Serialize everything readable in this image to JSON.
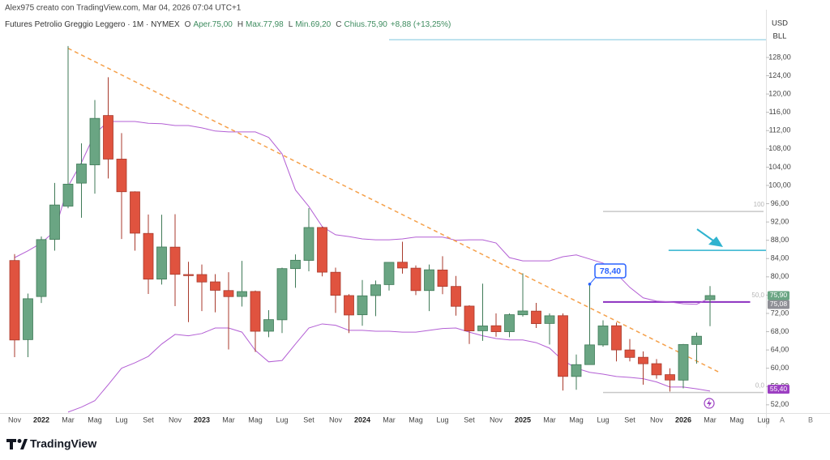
{
  "chart_data": {
    "type": "candlestick",
    "byline": "Alex975 creato con TradingView.com, Mar 04, 2026 07:04 UTC+1",
    "symbol": "Futures Petrolio Greggio Leggero · 1M · NYMEX",
    "ohlc_header": [
      {
        "key": "O",
        "text": "Aper.75,00"
      },
      {
        "key": "H",
        "text": "Max.77,98"
      },
      {
        "key": "L",
        "text": "Min.69,20"
      },
      {
        "key": "C",
        "text": "Chius.75,90"
      }
    ],
    "change": "+8,88 (+13,25%)",
    "currency": "USD",
    "unit": "BLL",
    "categories": [
      "Nov",
      null,
      "2022",
      null,
      "Mar",
      null,
      "Mag",
      null,
      "Lug",
      null,
      "Set",
      null,
      "Nov",
      null,
      "2023",
      null,
      "Mar",
      null,
      "Mag",
      null,
      "Lug",
      null,
      "Set",
      null,
      "Nov",
      null,
      "2024",
      null,
      "Mar",
      null,
      "Mag",
      null,
      "Lug",
      null,
      "Set",
      null,
      "Nov",
      null,
      "2025",
      null,
      "Mar",
      null,
      "Mag",
      null,
      "Lug",
      null,
      "Set",
      null,
      "Nov",
      null,
      "2026",
      null,
      "Mar",
      null,
      "Mag",
      null,
      "Lug"
    ],
    "open": [
      83.57,
      66.26,
      75.69,
      88.2,
      95.47,
      100.5,
      104.5,
      115.3,
      105.76,
      98.6,
      89.5,
      79.5,
      86.5,
      80.5,
      80.5,
      78.9,
      77.0,
      75.7,
      76.8,
      68.1,
      70.6,
      81.8,
      83.6,
      90.8,
      81.0,
      75.9,
      71.7,
      75.9,
      78.3,
      83.2,
      81.9,
      77.0,
      81.5,
      77.9,
      73.6,
      68.2,
      69.3,
      68.0,
      71.7,
      72.5,
      69.8,
      71.5,
      58.2,
      60.8,
      65.1,
      69.3,
      64.0,
      62.4,
      61.0,
      58.6,
      57.4,
      65.2,
      75.0,
      null,
      null,
      null,
      null
    ],
    "high": [
      84.97,
      76.34,
      88.84,
      100.54,
      130.5,
      109.2,
      118.68,
      123.68,
      111.45,
      98.7,
      93.64,
      93.6,
      93.7,
      83.3,
      82.7,
      80.6,
      81.0,
      83.5,
      77.0,
      72.7,
      82.0,
      84.9,
      95.03,
      90.97,
      82.0,
      76.2,
      79.3,
      79.2,
      83.1,
      87.67,
      82.5,
      82.7,
      84.5,
      80.2,
      73.8,
      78.5,
      72.0,
      72.0,
      80.77,
      74.3,
      72.0,
      72.0,
      63.0,
      78.4,
      70.5,
      70.0,
      66.4,
      63.7,
      62.0,
      60.0,
      65.3,
      67.8,
      77.98,
      null,
      null,
      null,
      null
    ],
    "low": [
      62.43,
      62.43,
      74.27,
      85.73,
      95.0,
      92.93,
      98.2,
      101.53,
      88.28,
      85.73,
      76.25,
      78.3,
      73.6,
      70.08,
      72.5,
      72.25,
      64.12,
      73.5,
      63.57,
      66.8,
      67.7,
      77.6,
      81.2,
      80.1,
      72.1,
      67.7,
      69.3,
      71.4,
      77.0,
      80.7,
      76.0,
      72.5,
      76.2,
      71.5,
      65.3,
      66.0,
      66.9,
      66.8,
      71.3,
      68.8,
      65.2,
      55.12,
      55.3,
      60.8,
      64.7,
      61.5,
      61.5,
      56.4,
      57.7,
      54.9,
      55.6,
      61.0,
      69.2,
      null,
      null,
      null,
      null
    ],
    "close": [
      66.18,
      75.21,
      88.15,
      95.72,
      100.28,
      104.69,
      114.67,
      105.76,
      98.62,
      89.55,
      79.49,
      86.53,
      80.55,
      80.26,
      78.87,
      77.05,
      75.67,
      76.78,
      68.09,
      70.64,
      81.8,
      83.63,
      90.79,
      81.02,
      75.96,
      71.65,
      75.85,
      78.26,
      83.17,
      81.93,
      76.99,
      81.54,
      77.91,
      73.55,
      68.17,
      69.26,
      68.0,
      71.72,
      72.53,
      69.76,
      71.48,
      58.21,
      60.79,
      65.11,
      69.26,
      64.01,
      62.37,
      60.98,
      58.55,
      57.42,
      65.2,
      67.0,
      75.9,
      null,
      null,
      null,
      null
    ],
    "up_color": "#6aa583",
    "down_color": "#e0533f",
    "bands": {
      "color": "#b35fd4",
      "upper": [
        84.2,
        85.7,
        87.4,
        90,
        99.8,
        105,
        111.3,
        114,
        114,
        114,
        113.6,
        113.5,
        113.1,
        113.1,
        112.6,
        111.9,
        111.7,
        111.7,
        111.7,
        110.5,
        106.9,
        99,
        95.4,
        91,
        89.2,
        88.8,
        88.3,
        88.1,
        88.1,
        88.3,
        88.7,
        88.7,
        88.7,
        88,
        88.1,
        88.1,
        87.4,
        84.2,
        83.5,
        83.5,
        83.5,
        84.4,
        84.8,
        83.9,
        83,
        80.7,
        77.7,
        75.4,
        74.7,
        74.5,
        74.1,
        74,
        75.4,
        null,
        null,
        null,
        null
      ],
      "lower": [
        null,
        null,
        null,
        null,
        50.4,
        51.5,
        52.9,
        56.4,
        60,
        61.2,
        62.6,
        65.3,
        67.4,
        67.1,
        67.6,
        68.8,
        68.8,
        67.9,
        63.9,
        61.4,
        61.7,
        65.3,
        68.8,
        69.7,
        69.4,
        68.3,
        68.3,
        68.1,
        68.1,
        67.9,
        67.9,
        68.3,
        68.7,
        68.8,
        67.9,
        67.1,
        66.5,
        66.2,
        66.2,
        65.6,
        64.4,
        61.7,
        60,
        59.1,
        58.7,
        58.2,
        58,
        57.7,
        57,
        55.9,
        55.9,
        55.5,
        55.0,
        null,
        null,
        null,
        null
      ]
    },
    "trendline": {
      "x": [
        4,
        52.7
      ],
      "y": [
        130,
        59.1
      ],
      "color": "#f5a04a"
    },
    "levels": [
      {
        "value": 131.9,
        "from": 28,
        "to": 57,
        "color": "#a9d9e8"
      },
      {
        "value": 94.3,
        "from": 44,
        "to": 56,
        "color": "#c8c8c8",
        "label": "100"
      },
      {
        "value": 85.8,
        "from": 48.9,
        "to": 57,
        "color": "#2fb3cf"
      },
      {
        "value": 74.5,
        "from": 44,
        "to": 55,
        "color": "#8b2fc0",
        "label": "50,0"
      },
      {
        "value": 54.7,
        "from": 44,
        "to": 56,
        "color": "#c8c8c8",
        "label": "0,0"
      }
    ],
    "callout": {
      "index": 43,
      "value": 78.4,
      "label": "78,40",
      "color": "#2962ff"
    },
    "price_labels": [
      {
        "value": 75.9,
        "label": "75,90",
        "color": "#6aa583"
      },
      {
        "value": 75.08,
        "label": "75,08",
        "color": "#8f8f96"
      },
      {
        "value": 55.4,
        "label": "55,40",
        "color": "#9c3fc2"
      }
    ],
    "ylim": [
      50.2,
      138.8
    ],
    "yticks": [
      {
        "value": 52,
        "label": "52,00"
      },
      {
        "value": 56,
        "label": "56,00"
      },
      {
        "value": 60,
        "label": "60,00"
      },
      {
        "value": 64,
        "label": "64,00"
      },
      {
        "value": 68,
        "label": "68,00"
      },
      {
        "value": 72,
        "label": "72,00"
      },
      {
        "value": 76,
        "label": "76,00"
      },
      {
        "value": 80,
        "label": "80,00"
      },
      {
        "value": 84,
        "label": "84,00"
      },
      {
        "value": 88,
        "label": "88,00"
      },
      {
        "value": 92,
        "label": "92,00"
      },
      {
        "value": 96,
        "label": "96,00"
      },
      {
        "value": 100,
        "label": "100,00"
      },
      {
        "value": 104,
        "label": "104,00"
      },
      {
        "value": 108,
        "label": "108,00"
      },
      {
        "value": 112,
        "label": "112,00"
      },
      {
        "value": 116,
        "label": "116,00"
      },
      {
        "value": 120,
        "label": "120,00"
      },
      {
        "value": 124,
        "label": "124,00"
      },
      {
        "value": 128,
        "label": "128,00"
      }
    ],
    "axis_buttons": [
      "A",
      "B"
    ],
    "footer": "TradingView"
  }
}
